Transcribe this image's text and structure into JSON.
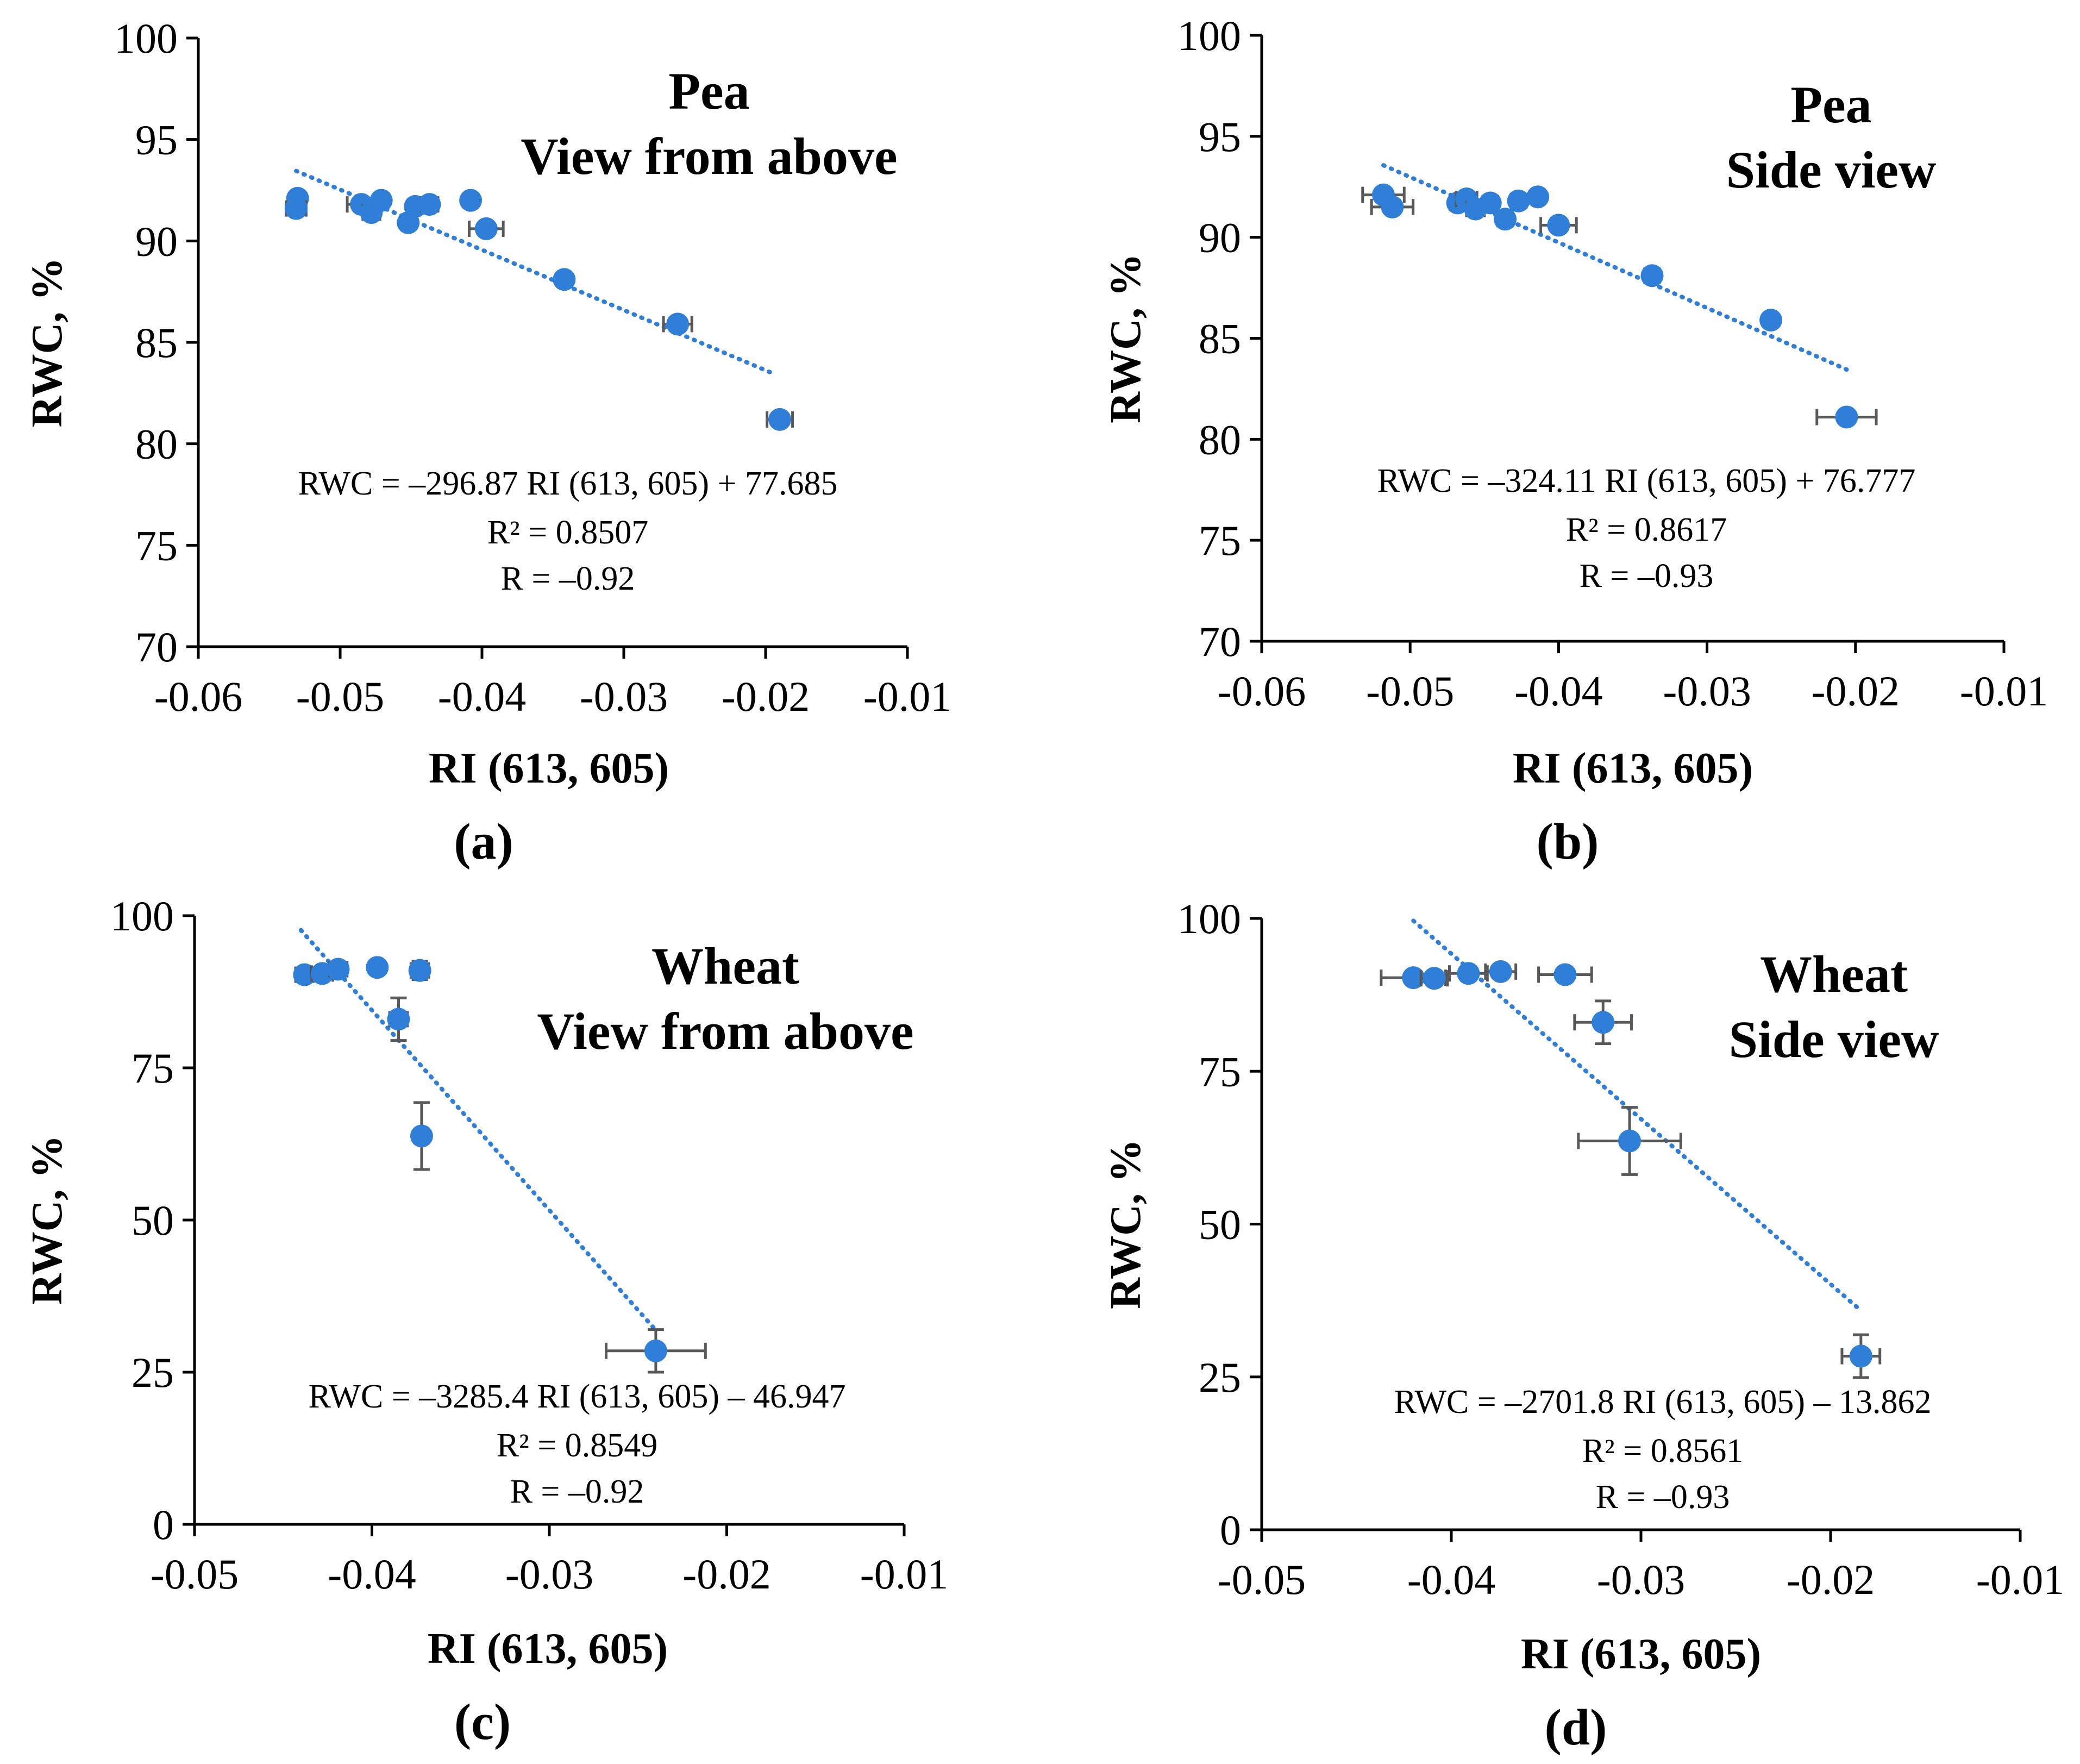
{
  "figure_type": "scatter with linear trendlines",
  "colors": {
    "marker": "#2f7ed8",
    "errorbar": "#595959",
    "trendline": "#2f7ed8",
    "axis": "#000000"
  },
  "chart_data": [
    {
      "type": "scatter",
      "panel_label": "(a)",
      "title": [
        "Pea",
        "View from above"
      ],
      "xlabel": "RI (613, 605)",
      "ylabel": "RWC, %",
      "xlim": [
        -0.06,
        -0.01
      ],
      "ylim": [
        70,
        100
      ],
      "xticks": [
        -0.06,
        -0.05,
        -0.04,
        -0.03,
        -0.02,
        -0.01
      ],
      "yticks": [
        70,
        75,
        80,
        85,
        90,
        95,
        100
      ],
      "xtick_labels": [
        "-0.06",
        "-0.05",
        "-0.04",
        "-0.03",
        "-0.02",
        "-0.01"
      ],
      "ytick_labels": [
        "70",
        "75",
        "80",
        "85",
        "90",
        "95",
        "100"
      ],
      "points": [
        {
          "x": -0.053,
          "y": 92.1,
          "xerr": 0.0003,
          "yerr": 0.2
        },
        {
          "x": -0.0531,
          "y": 91.6,
          "xerr": 0.0007,
          "yerr": 0.3
        },
        {
          "x": -0.0485,
          "y": 91.8,
          "xerr": 0.001,
          "yerr": 0.3
        },
        {
          "x": -0.0478,
          "y": 91.4,
          "xerr": 0.0006,
          "yerr": 0.2
        },
        {
          "x": -0.0471,
          "y": 92.0,
          "xerr": 0.0005,
          "yerr": 0.2
        },
        {
          "x": -0.0452,
          "y": 90.9,
          "xerr": 0.0004,
          "yerr": 0.2
        },
        {
          "x": -0.0447,
          "y": 91.7,
          "xerr": 0.0005,
          "yerr": 0.2
        },
        {
          "x": -0.0437,
          "y": 91.8,
          "xerr": 0.0006,
          "yerr": 0.2
        },
        {
          "x": -0.0408,
          "y": 92.0,
          "xerr": 0.0004,
          "yerr": 0.2
        },
        {
          "x": -0.0397,
          "y": 90.6,
          "xerr": 0.0012,
          "yerr": 0.3
        },
        {
          "x": -0.0342,
          "y": 88.1,
          "xerr": 0.0004,
          "yerr": 0.2
        },
        {
          "x": -0.0262,
          "y": 85.9,
          "xerr": 0.001,
          "yerr": 0.3
        },
        {
          "x": -0.019,
          "y": 81.2,
          "xerr": 0.0009,
          "yerr": 0.3
        }
      ],
      "trendline": {
        "slope": -296.87,
        "intercept": 77.685,
        "x_range": [
          -0.0531,
          -0.0195
        ]
      },
      "annotations": [
        "RWC = –296.87 RI (613, 605) + 77.685",
        "R² = 0.8507",
        "R = –0.92"
      ]
    },
    {
      "type": "scatter",
      "panel_label": "(b)",
      "title": [
        "Pea",
        "Side view"
      ],
      "xlabel": "RI (613, 605)",
      "ylabel": "RWC, %",
      "xlim": [
        -0.06,
        -0.01
      ],
      "ylim": [
        70,
        100
      ],
      "xticks": [
        -0.06,
        -0.05,
        -0.04,
        -0.03,
        -0.02,
        -0.01
      ],
      "yticks": [
        70,
        75,
        80,
        85,
        90,
        95,
        100
      ],
      "xtick_labels": [
        "-0.06",
        "-0.05",
        "-0.04",
        "-0.03",
        "-0.02",
        "-0.01"
      ],
      "ytick_labels": [
        "70",
        "75",
        "80",
        "85",
        "90",
        "95",
        "100"
      ],
      "points": [
        {
          "x": -0.0518,
          "y": 92.1,
          "xerr": 0.0014,
          "yerr": 0.3
        },
        {
          "x": -0.0512,
          "y": 91.5,
          "xerr": 0.0014,
          "yerr": 0.3
        },
        {
          "x": -0.0468,
          "y": 91.7,
          "xerr": 0.0005,
          "yerr": 0.2
        },
        {
          "x": -0.0462,
          "y": 91.9,
          "xerr": 0.0007,
          "yerr": 0.2
        },
        {
          "x": -0.0456,
          "y": 91.4,
          "xerr": 0.0006,
          "yerr": 0.2
        },
        {
          "x": -0.0446,
          "y": 91.7,
          "xerr": 0.0005,
          "yerr": 0.2
        },
        {
          "x": -0.0436,
          "y": 90.9,
          "xerr": 0.0005,
          "yerr": 0.2
        },
        {
          "x": -0.0427,
          "y": 91.8,
          "xerr": 0.0005,
          "yerr": 0.2
        },
        {
          "x": -0.0414,
          "y": 92.0,
          "xerr": 0.0004,
          "yerr": 0.2
        },
        {
          "x": -0.04,
          "y": 90.6,
          "xerr": 0.0012,
          "yerr": 0.3
        },
        {
          "x": -0.0337,
          "y": 88.1,
          "xerr": 0.0005,
          "yerr": 0.3
        },
        {
          "x": -0.0257,
          "y": 85.9,
          "xerr": 0.0003,
          "yerr": 0.3
        },
        {
          "x": -0.0206,
          "y": 81.1,
          "xerr": 0.002,
          "yerr": 0.3
        }
      ],
      "trendline": {
        "slope": -324.11,
        "intercept": 76.777,
        "x_range": [
          -0.0518,
          -0.0206
        ]
      },
      "annotations": [
        "RWC = –324.11 RI (613, 605) + 76.777",
        "R² = 0.8617",
        "R = –0.93"
      ]
    },
    {
      "type": "scatter",
      "panel_label": "(c)",
      "title": [
        "Wheat",
        "View from above"
      ],
      "xlabel": "RI (613, 605)",
      "ylabel": "RWC, %",
      "xlim": [
        -0.05,
        -0.01
      ],
      "ylim": [
        0,
        100
      ],
      "xticks": [
        -0.05,
        -0.04,
        -0.03,
        -0.02,
        -0.01
      ],
      "yticks": [
        0,
        25,
        50,
        75,
        100
      ],
      "xtick_labels": [
        "-0.05",
        "-0.04",
        "-0.03",
        "-0.02",
        "-0.01"
      ],
      "ytick_labels": [
        "0",
        "25",
        "50",
        "75",
        "100"
      ],
      "points": [
        {
          "x": -0.0438,
          "y": 90.3,
          "xerr": 0.0005,
          "yerr": 1.0
        },
        {
          "x": -0.0428,
          "y": 90.5,
          "xerr": 0.0006,
          "yerr": 1.0
        },
        {
          "x": -0.0419,
          "y": 91.2,
          "xerr": 0.0005,
          "yerr": 1.0
        },
        {
          "x": -0.0397,
          "y": 91.5,
          "xerr": 0.0003,
          "yerr": 1.0
        },
        {
          "x": -0.0373,
          "y": 91.0,
          "xerr": 0.0005,
          "yerr": 1.5
        },
        {
          "x": -0.0385,
          "y": 83.0,
          "xerr": 0.0005,
          "yerr": 3.5
        },
        {
          "x": -0.0372,
          "y": 63.8,
          "xerr": 0.0004,
          "yerr": 5.5
        },
        {
          "x": -0.024,
          "y": 28.5,
          "xerr": 0.0028,
          "yerr": 3.5
        }
      ],
      "trendline": {
        "slope": -3285.4,
        "intercept": -46.947,
        "x_range": [
          -0.044,
          -0.024
        ]
      },
      "annotations": [
        "RWC = –3285.4 RI (613, 605) – 46.947",
        "R² = 0.8549",
        "R = –0.92"
      ]
    },
    {
      "type": "scatter",
      "panel_label": "(d)",
      "title": [
        "Wheat",
        "Side view"
      ],
      "xlabel": "RI (613, 605)",
      "ylabel": "RWC, %",
      "xlim": [
        -0.05,
        -0.01
      ],
      "ylim": [
        0,
        100
      ],
      "xticks": [
        -0.05,
        -0.04,
        -0.03,
        -0.02,
        -0.01
      ],
      "yticks": [
        0,
        25,
        50,
        75,
        100
      ],
      "xtick_labels": [
        "-0.05",
        "-0.04",
        "-0.03",
        "-0.02",
        "-0.01"
      ],
      "ytick_labels": [
        "0",
        "25",
        "50",
        "75",
        "100"
      ],
      "points": [
        {
          "x": -0.042,
          "y": 90.3,
          "xerr": 0.0017,
          "yerr": 1.0
        },
        {
          "x": -0.0409,
          "y": 90.2,
          "xerr": 0.0007,
          "yerr": 1.0
        },
        {
          "x": -0.0391,
          "y": 91.0,
          "xerr": 0.001,
          "yerr": 1.0
        },
        {
          "x": -0.0374,
          "y": 91.3,
          "xerr": 0.0008,
          "yerr": 1.0
        },
        {
          "x": -0.034,
          "y": 90.8,
          "xerr": 0.0014,
          "yerr": 1.0
        },
        {
          "x": -0.032,
          "y": 83.0,
          "xerr": 0.0015,
          "yerr": 3.5
        },
        {
          "x": -0.0306,
          "y": 63.6,
          "xerr": 0.0027,
          "yerr": 5.5
        },
        {
          "x": -0.0184,
          "y": 28.4,
          "xerr": 0.001,
          "yerr": 3.5
        }
      ],
      "trendline": {
        "slope": -2701.8,
        "intercept": -13.862,
        "x_range": [
          -0.042,
          -0.0185
        ]
      },
      "annotations": [
        "RWC = –2701.8 RI (613, 605) – 13.862",
        "R² = 0.8561",
        "R = –0.93"
      ]
    }
  ]
}
